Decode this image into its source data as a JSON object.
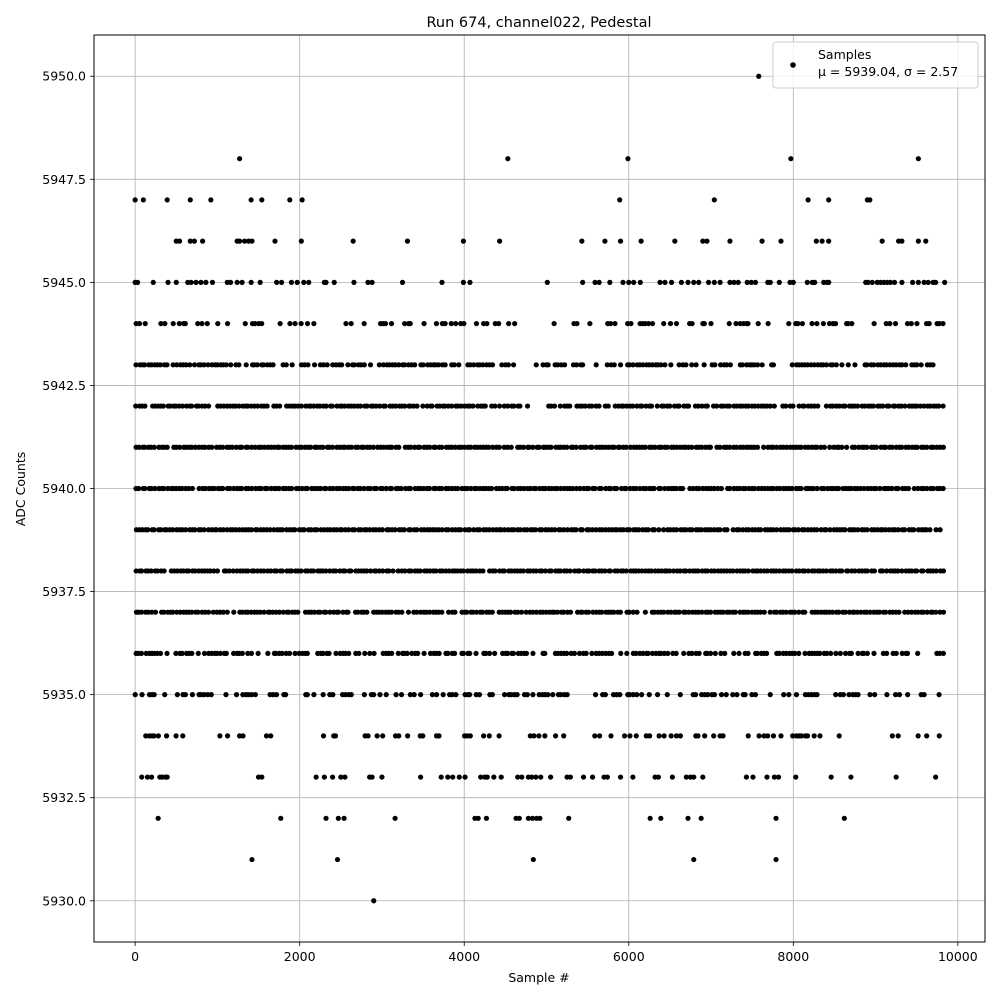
{
  "chart_data": {
    "type": "scatter",
    "title": "Run 674, channel022, Pedestal",
    "xlabel": "Sample #",
    "ylabel": "ADC Counts",
    "xlim": [
      -500,
      10330
    ],
    "ylim": [
      5929,
      5951
    ],
    "xticks": [
      0,
      2000,
      4000,
      6000,
      8000,
      10000
    ],
    "xtick_labels": [
      "0",
      "2000",
      "4000",
      "6000",
      "8000",
      "10000"
    ],
    "yticks": [
      5930.0,
      5932.5,
      5935.0,
      5937.5,
      5940.0,
      5942.5,
      5945.0,
      5947.5,
      5950.0
    ],
    "ytick_labels": [
      "5930.0",
      "5932.5",
      "5935.0",
      "5937.5",
      "5940.0",
      "5942.5",
      "5945.0",
      "5947.5",
      "5950.0"
    ],
    "grid": true,
    "legend": {
      "placement": "top-right",
      "entries": [
        {
          "name": "Samples",
          "stats": "μ = 5939.04, σ = 2.57"
        }
      ]
    },
    "series": [
      {
        "name": "Samples",
        "color": "#000000",
        "n_samples": 9840,
        "mean": 5939.04,
        "sigma": 2.57,
        "levels": [
          {
            "y": 5950,
            "x": [
              7580
            ]
          },
          {
            "y": 5948,
            "x": [
              1270,
              4530,
              5990,
              7970,
              9520
            ]
          },
          {
            "y": 5947,
            "x": [
              0,
              100,
              390,
              670,
              920,
              1410,
              1540,
              1880,
              2030,
              5890,
              7040,
              8180,
              8430,
              8900,
              8930
            ]
          },
          {
            "y": 5946,
            "x": [
              500,
              540,
              670,
              720,
              820,
              1240,
              1270,
              1330,
              1380,
              1420,
              1700,
              2020,
              2650,
              3310,
              3990,
              4430,
              5430,
              5710,
              5900,
              6150,
              6560,
              6900,
              6950,
              7230,
              7620,
              7850,
              8280,
              8350,
              8430,
              9080,
              9280,
              9320,
              9520,
              9610
            ]
          },
          {
            "y": 5945,
            "x": [
              0,
              30,
              220,
              400,
              500,
              640,
              680,
              740,
              800,
              860,
              940,
              1120,
              1160,
              1240,
              1300,
              1410,
              1520,
              1720,
              1780,
              1900,
              1970,
              2050,
              2110,
              2300,
              2320,
              2420,
              2660,
              2830,
              2880,
              3250,
              3730,
              3990,
              4070,
              5010,
              5440,
              5590,
              5640,
              5770,
              5930,
              6000,
              6060,
              6140,
              6380,
              6440,
              6520,
              6640,
              6720,
              6790,
              6850,
              6970,
              7040,
              7110,
              7230,
              7280,
              7330,
              7440,
              7490,
              7540,
              7690,
              7720,
              7830,
              7960,
              8000,
              8170,
              8230,
              8260,
              8370,
              8410,
              8430,
              8880,
              8910,
              8960,
              9020,
              9060,
              9100,
              9140,
              9180,
              9230,
              9320,
              9450,
              9520,
              9590,
              9640,
              9700,
              9730,
              9840
            ]
          }
        ],
        "dense_levels": [
          {
            "y": 5944,
            "xmin": 0,
            "xmax": 9840,
            "coverage": 0.5,
            "gaps": [
              [
                3500,
                3700
              ],
              [
                4600,
                4980
              ],
              [
                7700,
                7940
              ]
            ]
          },
          {
            "y": 5943,
            "xmin": 0,
            "xmax": 9840,
            "coverage": 0.72,
            "gaps": [
              [
                4640,
                4930
              ]
            ]
          },
          {
            "y": 5942,
            "xmin": 0,
            "xmax": 9840,
            "coverage": 0.9,
            "gaps": [
              [
                4680,
                4980
              ]
            ]
          },
          {
            "y": 5941,
            "xmin": 0,
            "xmax": 9840,
            "coverage": 0.97,
            "gaps": []
          },
          {
            "y": 5940,
            "xmin": 0,
            "xmax": 9840,
            "coverage": 0.99,
            "gaps": []
          },
          {
            "y": 5939,
            "xmin": 0,
            "xmax": 9840,
            "coverage": 0.99,
            "gaps": []
          },
          {
            "y": 5938,
            "xmin": 0,
            "xmax": 9840,
            "coverage": 0.98,
            "gaps": []
          },
          {
            "y": 5937,
            "xmin": 0,
            "xmax": 9840,
            "coverage": 0.92,
            "gaps": []
          },
          {
            "y": 5936,
            "xmin": 0,
            "xmax": 9840,
            "coverage": 0.75,
            "gaps": []
          },
          {
            "y": 5935,
            "xmin": 0,
            "xmax": 9840,
            "coverage": 0.55,
            "gaps": [
              [
                3400,
                3600
              ]
            ]
          },
          {
            "y": 5934,
            "xmin": 0,
            "xmax": 9840,
            "coverage": 0.3,
            "gaps": [
              [
                500,
                1000
              ],
              [
                1650,
                2250
              ],
              [
                8700,
                9100
              ]
            ]
          }
        ],
        "sparse_levels": [
          {
            "y": 5933,
            "x": [
              80,
              150,
              200,
              300,
              330,
              370,
              390,
              1500,
              1540,
              2200,
              2300,
              2400,
              2500,
              2550,
              2850,
              2880,
              3000,
              3470,
              3720,
              3800,
              3860,
              3940,
              4010,
              4200,
              4250,
              4280,
              4360,
              4450,
              4650,
              4700,
              4780,
              4820,
              4870,
              4930,
              5050,
              5250,
              5290,
              5450,
              5560,
              5700,
              5740,
              5900,
              6050,
              6320,
              6360,
              6530,
              6700,
              6750,
              6790,
              6900,
              7430,
              7510,
              7680,
              7770,
              7820,
              8030,
              8460,
              8700,
              9250,
              9730
            ]
          },
          {
            "y": 5932,
            "x": [
              280,
              1770,
              2320,
              2470,
              2540,
              3160,
              4130,
              4170,
              4270,
              4630,
              4670,
              4780,
              4830,
              4880,
              4920,
              5270,
              6260,
              6390,
              6720,
              6880,
              7790,
              8620
            ]
          },
          {
            "y": 5931,
            "x": [
              1420,
              2460,
              4840,
              6790,
              7790
            ]
          },
          {
            "y": 5930,
            "x": [
              2900
            ]
          }
        ]
      }
    ]
  }
}
